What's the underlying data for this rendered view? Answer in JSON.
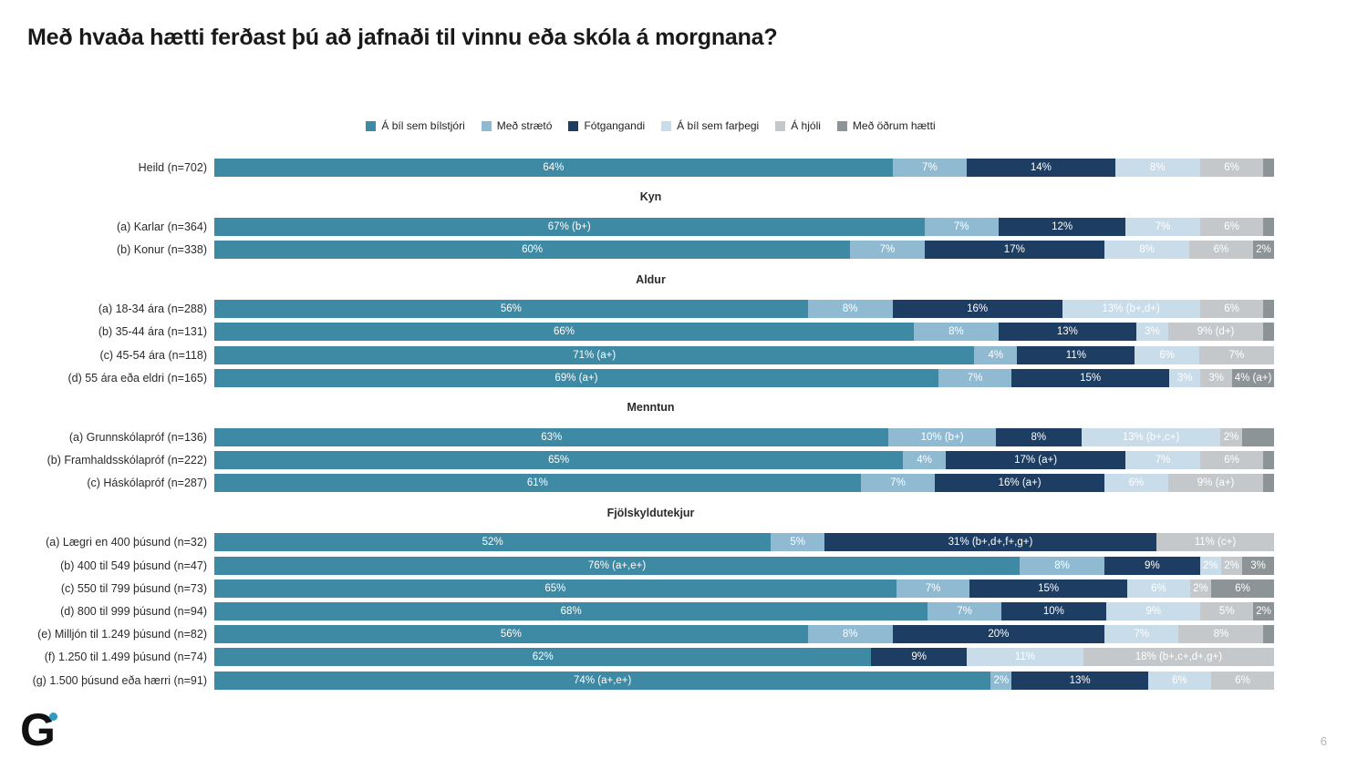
{
  "title": "Með hvaða hætti ferðast þú að jafnaði til vinnu eða skóla á morgnana?",
  "footer": {
    "logo_letter": "G",
    "logo_dot_color": "#2E9AC0",
    "page_number": "6"
  },
  "chart_data": {
    "type": "bar",
    "stacked": true,
    "orientation": "horizontal",
    "unit": "%",
    "legend_position": "top-center",
    "series": [
      "Á bíl sem bílstjóri",
      "Með strætó",
      "Fótgangandi",
      "Á bíl sem farþegi",
      "Á hjóli",
      "Með öðrum hætti"
    ],
    "colors": [
      "#3E89A3",
      "#8FBAD2",
      "#1E3D62",
      "#C9DCEA",
      "#C4C8CB",
      "#8D9497"
    ],
    "rows": [
      {
        "kind": "bar",
        "label": "Heild (n=702)",
        "values": [
          64,
          7,
          14,
          8,
          6,
          1
        ],
        "labels": [
          "64%",
          "7%",
          "14%",
          "8%",
          "6%",
          ""
        ]
      },
      {
        "kind": "section",
        "label": "Kyn"
      },
      {
        "kind": "bar",
        "label": "(a) Karlar (n=364)",
        "values": [
          67,
          7,
          12,
          7,
          6,
          1
        ],
        "labels": [
          "67% (b+)",
          "7%",
          "12%",
          "7%",
          "6%",
          ""
        ]
      },
      {
        "kind": "bar",
        "label": "(b) Konur (n=338)",
        "values": [
          60,
          7,
          17,
          8,
          6,
          2
        ],
        "labels": [
          "60%",
          "7%",
          "17%",
          "8%",
          "6%",
          "2%"
        ]
      },
      {
        "kind": "section",
        "label": "Aldur"
      },
      {
        "kind": "bar",
        "label": "(a) 18-34 ára (n=288)",
        "values": [
          56,
          8,
          16,
          13,
          6,
          1
        ],
        "labels": [
          "56%",
          "8%",
          "16%",
          "13% (b+,d+)",
          "6%",
          ""
        ]
      },
      {
        "kind": "bar",
        "label": "(b) 35-44 ára (n=131)",
        "values": [
          66,
          8,
          13,
          3,
          9,
          1
        ],
        "labels": [
          "66%",
          "8%",
          "13%",
          "3%",
          "9% (d+)",
          ""
        ]
      },
      {
        "kind": "bar",
        "label": "(c) 45-54 ára (n=118)",
        "values": [
          71,
          4,
          11,
          6,
          7,
          0
        ],
        "labels": [
          "71% (a+)",
          "4%",
          "11%",
          "6%",
          "7%",
          ""
        ]
      },
      {
        "kind": "bar",
        "label": "(d) 55 ára eða eldri (n=165)",
        "values": [
          69,
          7,
          15,
          3,
          3,
          4
        ],
        "labels": [
          "69% (a+)",
          "7%",
          "15%",
          "3%",
          "3%",
          "4% (a+)"
        ]
      },
      {
        "kind": "section",
        "label": "Menntun"
      },
      {
        "kind": "bar",
        "label": "(a) Grunnskólapróf (n=136)",
        "values": [
          63,
          10,
          8,
          13,
          2,
          3
        ],
        "labels": [
          "63%",
          "10% (b+)",
          "8%",
          "13% (b+,c+)",
          "2%",
          ""
        ]
      },
      {
        "kind": "bar",
        "label": "(b) Framhaldsskólapróf (n=222)",
        "values": [
          65,
          4,
          17,
          7,
          6,
          1
        ],
        "labels": [
          "65%",
          "4%",
          "17% (a+)",
          "7%",
          "6%",
          ""
        ]
      },
      {
        "kind": "bar",
        "label": "(c) Háskólapróf (n=287)",
        "values": [
          61,
          7,
          16,
          6,
          9,
          1
        ],
        "labels": [
          "61%",
          "7%",
          "16% (a+)",
          "6%",
          "9% (a+)",
          ""
        ]
      },
      {
        "kind": "section",
        "label": "Fjölskyldutekjur"
      },
      {
        "kind": "bar",
        "label": "(a) Lægri en 400 þúsund (n=32)",
        "values": [
          52,
          5,
          31,
          0,
          11,
          0
        ],
        "labels": [
          "52%",
          "5%",
          "31% (b+,d+,f+,g+)",
          "",
          "11% (c+)",
          ""
        ]
      },
      {
        "kind": "bar",
        "label": "(b) 400 til 549 þúsund (n=47)",
        "values": [
          76,
          8,
          9,
          2,
          2,
          3
        ],
        "labels": [
          "76% (a+,e+)",
          "8%",
          "9%",
          "2%",
          "2%",
          "3%"
        ]
      },
      {
        "kind": "bar",
        "label": "(c) 550 til 799 þúsund (n=73)",
        "values": [
          65,
          7,
          15,
          6,
          2,
          6
        ],
        "labels": [
          "65%",
          "7%",
          "15%",
          "6%",
          "2%",
          "6%"
        ]
      },
      {
        "kind": "bar",
        "label": "(d) 800 til 999 þúsund (n=94)",
        "values": [
          68,
          7,
          10,
          9,
          5,
          2
        ],
        "labels": [
          "68%",
          "7%",
          "10%",
          "9%",
          "5%",
          "2%"
        ]
      },
      {
        "kind": "bar",
        "label": "(e) Milljón til 1.249 þúsund (n=82)",
        "values": [
          56,
          8,
          20,
          7,
          8,
          1
        ],
        "labels": [
          "56%",
          "8%",
          "20%",
          "7%",
          "8%",
          ""
        ]
      },
      {
        "kind": "bar",
        "label": "(f) 1.250 til 1.499 þúsund (n=74)",
        "values": [
          62,
          0,
          9,
          11,
          18,
          0
        ],
        "labels": [
          "62%",
          "",
          "9%",
          "11%",
          "18% (b+,c+,d+,g+)",
          ""
        ]
      },
      {
        "kind": "bar",
        "label": "(g) 1.500 þúsund eða hærri (n=91)",
        "values": [
          74,
          2,
          13,
          6,
          6,
          0
        ],
        "labels": [
          "74% (a+,e+)",
          "2%",
          "13%",
          "6%",
          "6%",
          ""
        ]
      }
    ]
  }
}
